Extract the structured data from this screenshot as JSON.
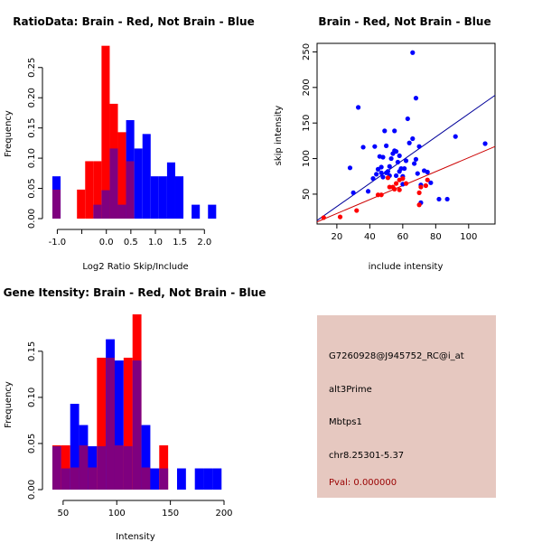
{
  "colors": {
    "brain": "#ff0000",
    "not_brain": "#0000ff",
    "overlap": "#7f007f",
    "brain_line": "#cc0000",
    "not_brain_line": "#000099",
    "info_bg": "#e6c8c0",
    "pval": "#990000"
  },
  "chart_data": [
    {
      "type": "bar",
      "id": "ratio_hist",
      "title": "RatioData: Brain - Red, Not Brain - Blue",
      "xlabel": "Log2 Ratio Skip/Include",
      "ylabel": "Frequency",
      "xlim": [
        -1.1,
        2.4
      ],
      "ylim": [
        0,
        0.29
      ],
      "xticks": [
        -1.0,
        -0.5,
        0.0,
        0.5,
        1.0,
        1.5,
        2.0
      ],
      "xtick_labels": [
        "-1.0",
        "",
        "0.0",
        "0.5",
        "1.0",
        "1.5",
        "2.0"
      ],
      "yticks": [
        0.0,
        0.05,
        0.1,
        0.15,
        0.2,
        0.25
      ],
      "ytick_labels": [
        "0.00",
        "0.05",
        "0.10",
        "0.15",
        "0.20",
        "0.25"
      ],
      "bin_start": -1.1,
      "bin_width": 0.167,
      "series": [
        {
          "name": "Brain",
          "color": "brain",
          "values": [
            0.048,
            0,
            0,
            0.048,
            0.095,
            0.095,
            0.286,
            0.19,
            0.143,
            0.095,
            0,
            0,
            0,
            0,
            0,
            0,
            0,
            0,
            0,
            0,
            0
          ]
        },
        {
          "name": "Not Brain",
          "color": "not_brain",
          "values": [
            0.07,
            0,
            0,
            0,
            0,
            0.023,
            0.047,
            0.116,
            0.023,
            0.163,
            0.116,
            0.14,
            0.07,
            0.07,
            0.093,
            0.07,
            0,
            0.023,
            0,
            0.023,
            0
          ]
        }
      ]
    },
    {
      "type": "scatter",
      "id": "intensity_scatter",
      "title": "Brain - Red, Not Brain - Blue",
      "xlabel": "include intensity",
      "ylabel": "skip intensity",
      "xlim": [
        8,
        116
      ],
      "ylim": [
        8,
        262
      ],
      "xticks": [
        20,
        40,
        60,
        80,
        100
      ],
      "xtick_labels": [
        "20",
        "40",
        "60",
        "80",
        "100"
      ],
      "yticks": [
        50,
        100,
        150,
        200,
        250
      ],
      "ytick_labels": [
        "50",
        "100",
        "150",
        "200",
        "250"
      ],
      "series": [
        {
          "name": "Not Brain",
          "color": "not_brain",
          "points": [
            [
              28,
              87
            ],
            [
              30,
              52
            ],
            [
              33,
              172
            ],
            [
              36,
              116
            ],
            [
              39,
              54
            ],
            [
              42,
              72
            ],
            [
              43,
              117
            ],
            [
              44,
              78
            ],
            [
              45,
              85
            ],
            [
              46,
              103
            ],
            [
              47,
              80
            ],
            [
              47,
              88
            ],
            [
              48,
              74
            ],
            [
              48,
              102
            ],
            [
              49,
              139
            ],
            [
              50,
              118
            ],
            [
              50,
              80
            ],
            [
              51,
              82
            ],
            [
              52,
              76
            ],
            [
              52,
              89
            ],
            [
              53,
              100
            ],
            [
              54,
              107
            ],
            [
              55,
              111
            ],
            [
              55,
              139
            ],
            [
              56,
              110
            ],
            [
              56,
              76
            ],
            [
              57,
              95
            ],
            [
              58,
              104
            ],
            [
              58,
              82
            ],
            [
              59,
              86
            ],
            [
              60,
              75
            ],
            [
              60,
              64
            ],
            [
              61,
              86
            ],
            [
              62,
              97
            ],
            [
              63,
              156
            ],
            [
              64,
              122
            ],
            [
              66,
              249
            ],
            [
              66,
              128
            ],
            [
              67,
              93
            ],
            [
              68,
              99
            ],
            [
              68,
              185
            ],
            [
              69,
              79
            ],
            [
              70,
              117
            ],
            [
              71,
              63
            ],
            [
              71,
              38
            ],
            [
              73,
              83
            ],
            [
              75,
              81
            ],
            [
              77,
              66
            ],
            [
              82,
              43
            ],
            [
              87,
              43
            ],
            [
              92,
              131
            ],
            [
              110,
              121
            ]
          ]
        },
        {
          "name": "Brain",
          "color": "brain",
          "points": [
            [
              12,
              17
            ],
            [
              22,
              18
            ],
            [
              32,
              27
            ],
            [
              45,
              49
            ],
            [
              47,
              49
            ],
            [
              51,
              73
            ],
            [
              52,
              60
            ],
            [
              54,
              60
            ],
            [
              55,
              57
            ],
            [
              56,
              65
            ],
            [
              58,
              56
            ],
            [
              58,
              70
            ],
            [
              60,
              72
            ],
            [
              62,
              65
            ],
            [
              70,
              35
            ],
            [
              70,
              52
            ],
            [
              71,
              60
            ],
            [
              74,
              62
            ],
            [
              75,
              70
            ]
          ]
        }
      ],
      "fit_lines": [
        {
          "name": "Not Brain",
          "color": "not_brain_line",
          "from": [
            8,
            13
          ],
          "to": [
            116,
            189
          ]
        },
        {
          "name": "Brain",
          "color": "brain_line",
          "from": [
            8,
            11
          ],
          "to": [
            116,
            117
          ]
        }
      ]
    },
    {
      "type": "bar",
      "id": "gene_intensity_hist",
      "title": "Gene Itensity: Brain - Red, Not Brain - Blue",
      "xlabel": "Intensity",
      "ylabel": "Frequency",
      "xlim": [
        40,
        200
      ],
      "ylim": [
        0,
        0.19
      ],
      "xticks": [
        50,
        100,
        150,
        200
      ],
      "xtick_labels": [
        "50",
        "100",
        "150",
        "200"
      ],
      "yticks": [
        0.0,
        0.05,
        0.1,
        0.15
      ],
      "ytick_labels": [
        "0.00",
        "0.05",
        "0.10",
        "0.15"
      ],
      "bin_start": 40,
      "bin_width": 8.3,
      "series": [
        {
          "name": "Brain",
          "color": "brain",
          "values": [
            0.048,
            0.048,
            0.024,
            0.048,
            0.024,
            0.143,
            0.143,
            0.048,
            0.143,
            0.19,
            0.024,
            0.0,
            0.048,
            0,
            0,
            0,
            0,
            0,
            0
          ]
        },
        {
          "name": "Not Brain",
          "color": "not_brain",
          "values": [
            0.047,
            0.023,
            0.093,
            0.07,
            0.047,
            0.047,
            0.163,
            0.14,
            0.047,
            0.14,
            0.07,
            0.023,
            0.023,
            0,
            0.023,
            0,
            0.023,
            0.023,
            0.023
          ]
        }
      ]
    }
  ],
  "info_panel": {
    "probe_id": "G7260928@J945752_RC@i_at",
    "event_type": "alt3Prime",
    "gene": "Mbtps1",
    "location": "chr8.25301-5.37",
    "pval": "Pval: 0.000000"
  }
}
